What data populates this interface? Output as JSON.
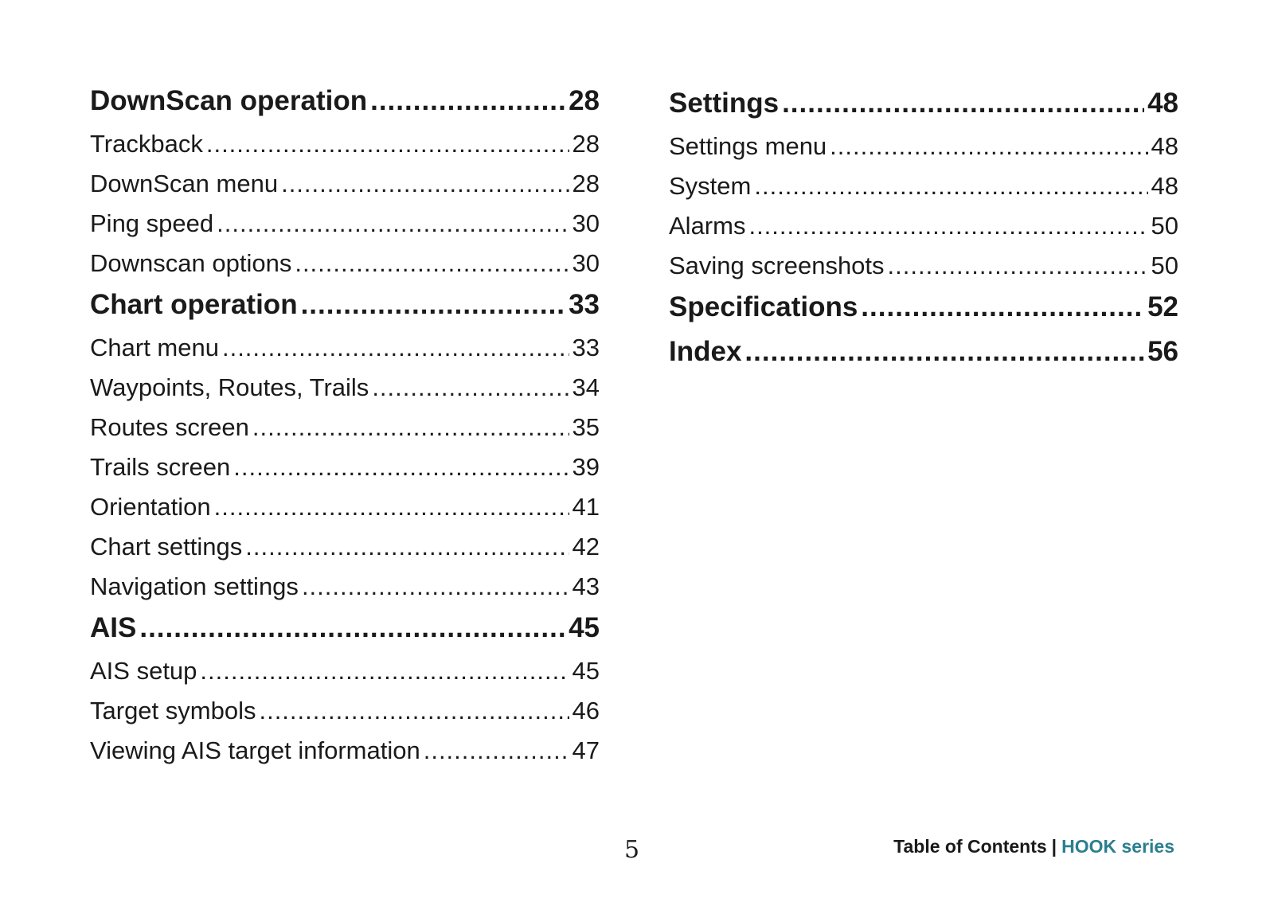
{
  "left_column": [
    {
      "label": "DownScan operation",
      "page": "28",
      "heading": true
    },
    {
      "label": "Trackback",
      "page": "28"
    },
    {
      "label": "DownScan menu",
      "page": "28"
    },
    {
      "label": "Ping speed",
      "page": "30"
    },
    {
      "label": "Downscan options",
      "page": "30"
    },
    {
      "label": "Chart operation",
      "page": "33",
      "heading": true
    },
    {
      "label": "Chart menu",
      "page": "33"
    },
    {
      "label": "Waypoints, Routes, Trails",
      "page": "34"
    },
    {
      "label": "Routes screen",
      "page": "35"
    },
    {
      "label": "Trails screen",
      "page": "39"
    },
    {
      "label": "Orientation",
      "page": "41"
    },
    {
      "label": "Chart settings",
      "page": "42"
    },
    {
      "label": "Navigation settings",
      "page": "43"
    },
    {
      "label": "AIS",
      "page": "45",
      "heading": true
    },
    {
      "label": "AIS setup",
      "page": "45"
    },
    {
      "label": "Target symbols",
      "page": "46"
    },
    {
      "label": "Viewing AIS target information",
      "page": "47"
    }
  ],
  "right_column": [
    {
      "label": "Settings",
      "page": "48",
      "heading": true
    },
    {
      "label": "Settings menu",
      "page": "48"
    },
    {
      "label": "System",
      "page": "48"
    },
    {
      "label": "Alarms",
      "page": "50"
    },
    {
      "label": "Saving screenshots",
      "page": "50"
    },
    {
      "label": "Specifications",
      "page": "52",
      "heading": true
    },
    {
      "label": "Index",
      "page": "56",
      "heading": true
    }
  ],
  "footer": {
    "page_number": "5",
    "section": "Table of Contents",
    "separator": "|",
    "series": "HOOK series",
    "series_color": "#2a7f8f"
  }
}
